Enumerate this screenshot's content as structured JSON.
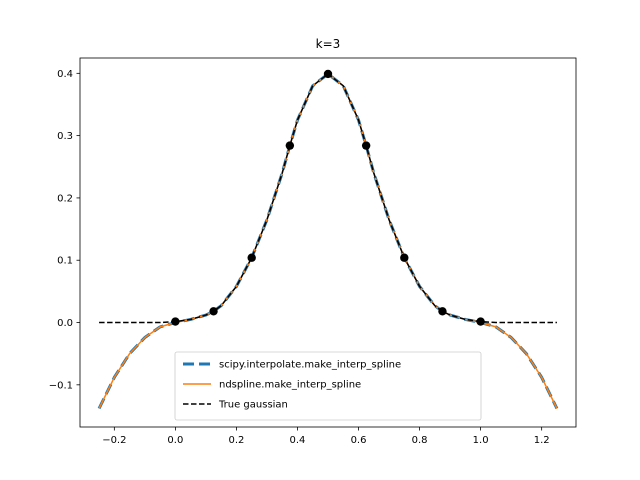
{
  "chart_data": {
    "type": "line",
    "title": "k=3",
    "xlabel": "",
    "ylabel": "",
    "xlim": [
      -0.3125,
      1.3125
    ],
    "ylim": [
      -0.1677,
      0.4246
    ],
    "xticks": [
      -0.2,
      0.0,
      0.2,
      0.4,
      0.6,
      0.8,
      1.0,
      1.2
    ],
    "xtick_labels": [
      "−0.2",
      "0.0",
      "0.2",
      "0.4",
      "0.6",
      "0.8",
      "1.0",
      "1.2"
    ],
    "yticks": [
      -0.1,
      0.0,
      0.1,
      0.2,
      0.3,
      0.4
    ],
    "ytick_labels": [
      "−0.1",
      "0.0",
      "0.1",
      "0.2",
      "0.3",
      "0.4"
    ],
    "grid": false,
    "legend_position": "lower-center",
    "series": [
      {
        "name": "scipy.interpolate.make_interp_spline",
        "color": "#1f77b4",
        "style": "dashed-thick",
        "x": [
          -0.25,
          -0.2,
          -0.15,
          -0.1,
          -0.05,
          0.0,
          0.05,
          0.1,
          0.125,
          0.15,
          0.2,
          0.25,
          0.3,
          0.35,
          0.375,
          0.4,
          0.45,
          0.5,
          0.55,
          0.6,
          0.625,
          0.65,
          0.7,
          0.75,
          0.8,
          0.85,
          0.875,
          0.9,
          0.95,
          1.0,
          1.05,
          1.1,
          1.15,
          1.2,
          1.25
        ],
        "y": [
          -0.138,
          -0.088,
          -0.05,
          -0.024,
          -0.007,
          0.0,
          0.005,
          0.012,
          0.018,
          0.027,
          0.058,
          0.104,
          0.165,
          0.24,
          0.284,
          0.325,
          0.38,
          0.399,
          0.38,
          0.325,
          0.284,
          0.24,
          0.165,
          0.104,
          0.058,
          0.027,
          0.018,
          0.012,
          0.005,
          0.0,
          -0.007,
          -0.024,
          -0.05,
          -0.088,
          -0.138
        ]
      },
      {
        "name": "ndspline.make_interp_spline",
        "color": "#ff7f0e",
        "style": "solid",
        "x": [
          -0.25,
          -0.2,
          -0.15,
          -0.1,
          -0.05,
          0.0,
          0.05,
          0.1,
          0.125,
          0.15,
          0.2,
          0.25,
          0.3,
          0.35,
          0.375,
          0.4,
          0.45,
          0.5,
          0.55,
          0.6,
          0.625,
          0.65,
          0.7,
          0.75,
          0.8,
          0.85,
          0.875,
          0.9,
          0.95,
          1.0,
          1.05,
          1.1,
          1.15,
          1.2,
          1.25
        ],
        "y": [
          -0.138,
          -0.088,
          -0.05,
          -0.024,
          -0.007,
          0.0,
          0.005,
          0.012,
          0.018,
          0.027,
          0.058,
          0.104,
          0.165,
          0.24,
          0.284,
          0.325,
          0.38,
          0.399,
          0.38,
          0.325,
          0.284,
          0.24,
          0.165,
          0.104,
          0.058,
          0.027,
          0.018,
          0.012,
          0.005,
          0.0,
          -0.007,
          -0.024,
          -0.05,
          -0.088,
          -0.138
        ]
      },
      {
        "name": "True gaussian",
        "color": "#000000",
        "style": "dashed",
        "x": [
          -0.25,
          -0.2,
          -0.15,
          -0.1,
          -0.05,
          0.0,
          0.05,
          0.1,
          0.125,
          0.15,
          0.2,
          0.25,
          0.3,
          0.35,
          0.375,
          0.4,
          0.45,
          0.5,
          0.55,
          0.6,
          0.625,
          0.65,
          0.7,
          0.75,
          0.8,
          0.85,
          0.875,
          0.9,
          0.95,
          1.0,
          1.05,
          1.1,
          1.15,
          1.2,
          1.25
        ],
        "y": [
          0.0,
          0.0,
          0.0,
          0.0,
          0.0,
          0.0015,
          0.005,
          0.012,
          0.018,
          0.027,
          0.058,
          0.104,
          0.165,
          0.24,
          0.284,
          0.325,
          0.38,
          0.399,
          0.38,
          0.325,
          0.284,
          0.24,
          0.165,
          0.104,
          0.058,
          0.027,
          0.018,
          0.012,
          0.005,
          0.0015,
          0.0,
          0.0,
          0.0,
          0.0,
          0.0
        ]
      }
    ],
    "points": {
      "color": "#000000",
      "x": [
        0.0,
        0.125,
        0.25,
        0.375,
        0.5,
        0.625,
        0.75,
        0.875,
        1.0
      ],
      "y": [
        0.0015,
        0.018,
        0.104,
        0.284,
        0.399,
        0.284,
        0.104,
        0.018,
        0.0015
      ]
    }
  }
}
